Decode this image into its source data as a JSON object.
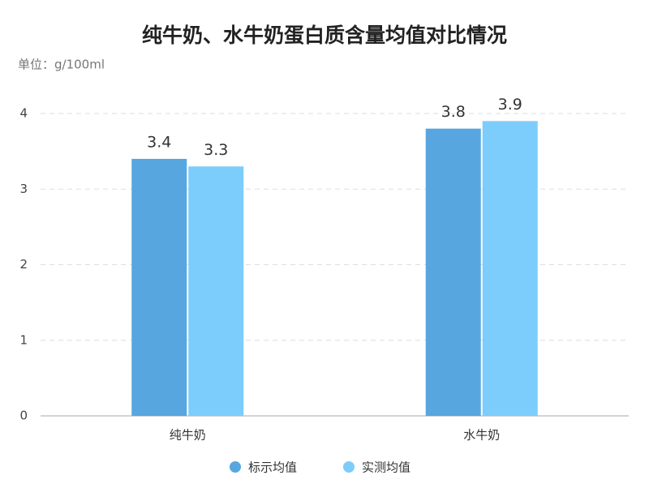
{
  "chart_data": {
    "type": "bar",
    "title": "纯牛奶、水牛奶蛋白质含量均值对比情况",
    "subtitle": "单位：g/100ml",
    "categories": [
      "纯牛奶",
      "水牛奶"
    ],
    "series": [
      {
        "name": "标示均值",
        "color": "#58a6df",
        "values": [
          3.4,
          3.8
        ]
      },
      {
        "name": "实测均值",
        "color": "#7ccdfb",
        "values": [
          3.3,
          3.9
        ]
      }
    ],
    "ylim": [
      0,
      4
    ],
    "yticks": [
      0,
      1,
      2,
      3,
      4
    ],
    "grid": true
  }
}
